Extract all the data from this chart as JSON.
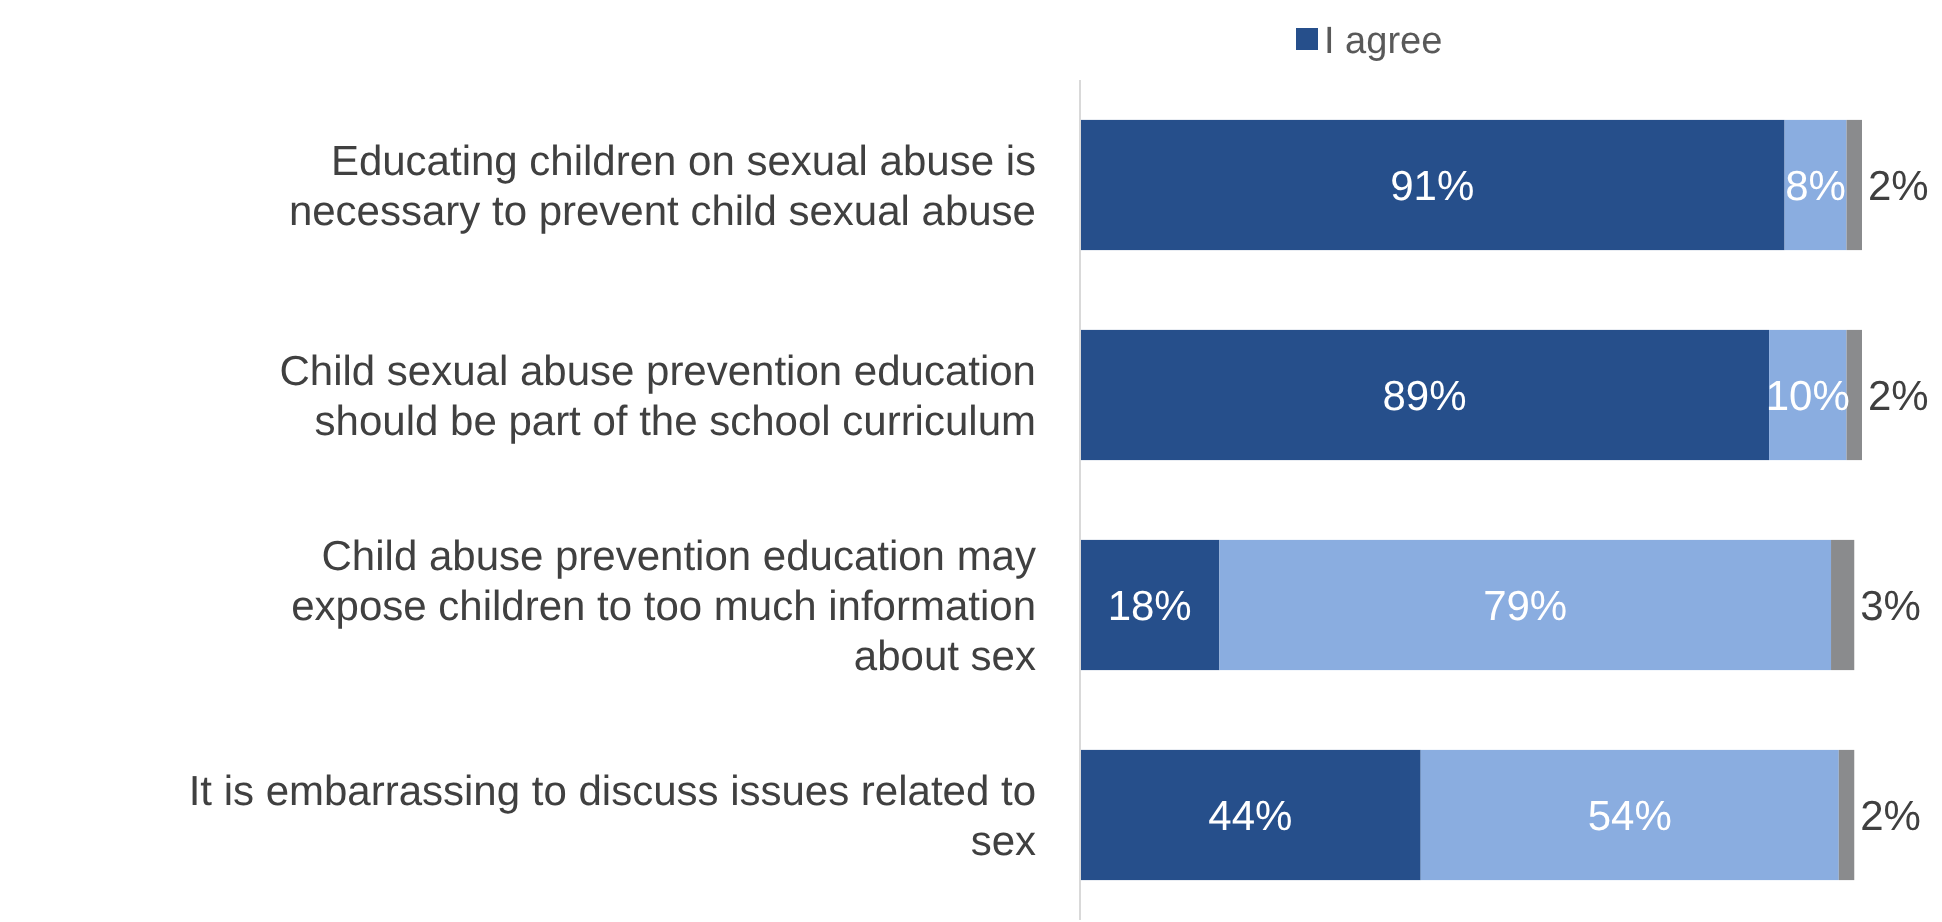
{
  "chart_data": {
    "type": "bar",
    "orientation": "horizontal",
    "stacked": true,
    "legend": "top",
    "categories": [
      "Educating children on sexual abuse is necessary to prevent child sexual abuse",
      "Child sexual abuse prevention education should be part of the school curriculum",
      "Child abuse prevention education may expose children to too much information about sex",
      "It is embarrassing to discuss issues related to sex"
    ],
    "series": [
      {
        "name": "I agree",
        "color": "#264f8b",
        "values": [
          91,
          89,
          18,
          44
        ],
        "value_labels": [
          "91%",
          "89%",
          "18%",
          "44%"
        ]
      },
      {
        "color": "#8aade0",
        "values": [
          8,
          10,
          79,
          54
        ],
        "value_labels": [
          "8%",
          "10%",
          "79%",
          "54%"
        ]
      },
      {
        "color": "#8a8b8d",
        "values": [
          2,
          2,
          3,
          2
        ],
        "value_labels": [
          "2%",
          "2%",
          "3%",
          "2%"
        ]
      }
    ]
  }
}
